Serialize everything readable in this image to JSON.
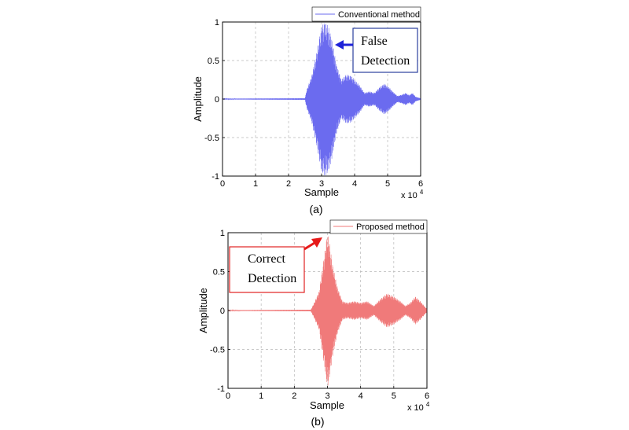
{
  "chart_data": [
    {
      "type": "line",
      "caption": "(a)",
      "xlabel": "Sample",
      "ylabel": "Amplitude",
      "x_multiplier": "x 10",
      "x_exponent": "4",
      "xlim": [
        0,
        6
      ],
      "ylim": [
        -1,
        1
      ],
      "xticks": [
        "0",
        "1",
        "2",
        "3",
        "4",
        "5",
        "6"
      ],
      "yticks": [
        "-1",
        "-0.5",
        "0",
        "0.5",
        "1"
      ],
      "grid": true,
      "legend_position": "top-right",
      "series": [
        {
          "name": "Conventional method",
          "color": "#6b6bef",
          "envelope_x": [
            0,
            2.5,
            2.55,
            2.7,
            2.85,
            3.0,
            3.1,
            3.2,
            3.3,
            3.45,
            3.6,
            3.75,
            3.9,
            4.0,
            4.15,
            4.3,
            4.45,
            4.6,
            4.75,
            4.9,
            5.05,
            5.15,
            5.3,
            5.45,
            5.55,
            5.65,
            5.75,
            5.85,
            6.0
          ],
          "envelope_amplitude": [
            0.005,
            0.01,
            0.12,
            0.3,
            0.6,
            0.95,
            1.0,
            0.95,
            0.8,
            0.45,
            0.25,
            0.32,
            0.3,
            0.25,
            0.18,
            0.08,
            0.1,
            0.08,
            0.15,
            0.2,
            0.15,
            0.1,
            0.04,
            0.06,
            0.08,
            0.05,
            0.08,
            0.03,
            0.01
          ]
        }
      ],
      "annotation": {
        "lines": [
          "False",
          "Detection"
        ],
        "color": "#2b3f9e",
        "arrow_color": "#1e22d8"
      }
    },
    {
      "type": "line",
      "caption": "(b)",
      "xlabel": "Sample",
      "ylabel": "Amplitude",
      "x_multiplier": "x 10",
      "x_exponent": "4",
      "xlim": [
        0,
        6
      ],
      "ylim": [
        -1,
        1
      ],
      "xticks": [
        "0",
        "1",
        "2",
        "3",
        "4",
        "5",
        "6"
      ],
      "yticks": [
        "-1",
        "-0.5",
        "0",
        "0.5",
        "1"
      ],
      "grid": true,
      "legend_position": "top-right",
      "series": [
        {
          "name": "Proposed method",
          "color": "#f07a7a",
          "envelope_x": [
            0,
            2.5,
            2.6,
            2.75,
            2.85,
            2.95,
            3.0,
            3.05,
            3.15,
            3.3,
            3.45,
            3.6,
            3.8,
            4.0,
            4.2,
            4.4,
            4.6,
            4.8,
            5.0,
            5.2,
            5.35,
            5.5,
            5.65,
            5.8,
            6.0
          ],
          "envelope_amplitude": [
            0.005,
            0.01,
            0.1,
            0.25,
            0.55,
            0.85,
            1.0,
            0.9,
            0.6,
            0.3,
            0.12,
            0.1,
            0.12,
            0.1,
            0.12,
            0.06,
            0.15,
            0.22,
            0.18,
            0.12,
            0.06,
            0.1,
            0.18,
            0.12,
            0.02
          ]
        }
      ],
      "annotation": {
        "lines": [
          "Correct",
          "Detection"
        ],
        "color": "#e12222",
        "arrow_color": "#e61a1a"
      }
    }
  ]
}
